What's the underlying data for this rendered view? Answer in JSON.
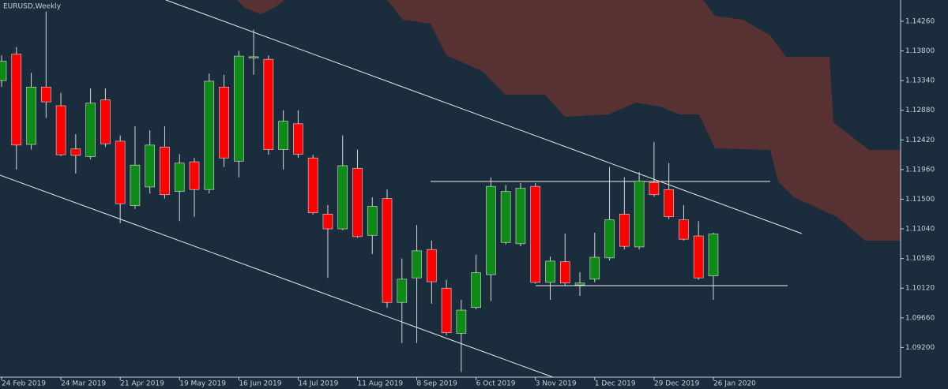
{
  "chart_data": {
    "type": "candlestick",
    "title": "EURUSD,Weekly",
    "categories": [
      "24 Feb 2019",
      null,
      null,
      null,
      "24 Mar 2019",
      null,
      null,
      null,
      "21 Apr 2019",
      null,
      null,
      null,
      "19 May 2019",
      null,
      null,
      null,
      "16 Jun 2019",
      null,
      null,
      null,
      "14 Jul 2019",
      null,
      null,
      null,
      "11 Aug 2019",
      null,
      null,
      null,
      "8 Sep 2019",
      null,
      null,
      null,
      "6 Oct 2019",
      null,
      null,
      null,
      "3 Nov 2019",
      null,
      null,
      null,
      "1 Dec 2019",
      null,
      null,
      null,
      "29 Dec 2019",
      null,
      null,
      null,
      "26 Jan 2020"
    ],
    "open": [
      1.1334,
      1.1375,
      1.1235,
      1.1324,
      1.1295,
      1.1228,
      1.1216,
      1.1304,
      1.124,
      1.114,
      1.1169,
      1.1231,
      1.1162,
      1.1208,
      1.1165,
      1.1324,
      1.1209,
      1.1369,
      1.1367,
      1.1227,
      1.1267,
      1.1214,
      1.1127,
      1.1104,
      1.1198,
      1.1094,
      1.1151,
      1.099,
      1.1028,
      1.1072,
      1.1012,
      1.0942,
      1.0982,
      1.1033,
      1.1083,
      1.1081,
      1.117,
      1.1021,
      1.1053,
      1.1017,
      1.1026,
      1.1059,
      1.1127,
      1.1076,
      1.1176,
      1.1165,
      1.1118,
      1.1093,
      1.1031
    ],
    "high": [
      1.1373,
      1.1386,
      1.1346,
      1.1441,
      1.1315,
      1.1251,
      1.1322,
      1.1322,
      1.1249,
      1.1263,
      1.1257,
      1.1263,
      1.122,
      1.1214,
      1.1345,
      1.1343,
      1.138,
      1.1413,
      1.1373,
      1.1288,
      1.1288,
      1.1219,
      1.1141,
      1.1249,
      1.1227,
      1.1153,
      1.1165,
      1.1058,
      1.111,
      1.1086,
      1.1025,
      1.0994,
      1.1064,
      1.1184,
      1.1172,
      1.1175,
      1.1175,
      1.1061,
      1.1097,
      1.1037,
      1.1098,
      1.12,
      1.1184,
      1.1192,
      1.1239,
      1.1206,
      1.1141,
      1.1116,
      1.1098
    ],
    "low": [
      1.1324,
      1.1196,
      1.1227,
      1.1276,
      1.1217,
      1.119,
      1.1212,
      1.1231,
      1.1113,
      1.1135,
      1.1159,
      1.1151,
      1.1116,
      1.1123,
      1.1159,
      1.12,
      1.1184,
      1.1343,
      1.1219,
      1.1196,
      1.1214,
      1.1126,
      1.1028,
      1.1102,
      1.109,
      1.1065,
      1.0982,
      1.0927,
      1.0927,
      1.0988,
      1.0939,
      1.0882,
      1.0979,
      1.0992,
      1.108,
      1.1077,
      1.1019,
      1.0994,
      1.1016,
      1.1,
      1.1021,
      1.1055,
      1.1072,
      1.1072,
      1.1154,
      1.1119,
      1.1086,
      1.1025,
      1.0994
    ],
    "close": [
      1.1364,
      1.1234,
      1.1324,
      1.1301,
      1.1219,
      1.1218,
      1.1299,
      1.1236,
      1.1143,
      1.1203,
      1.1234,
      1.1157,
      1.1206,
      1.1165,
      1.1333,
      1.1214,
      1.1372,
      1.1371,
      1.1227,
      1.1271,
      1.122,
      1.1129,
      1.1104,
      1.1202,
      1.1092,
      1.1139,
      1.099,
      1.1026,
      1.107,
      1.1022,
      1.0943,
      1.0978,
      1.1036,
      1.117,
      1.1162,
      1.1167,
      1.1021,
      1.1054,
      1.102,
      1.102,
      1.106,
      1.1118,
      1.1077,
      1.1178,
      1.1157,
      1.1123,
      1.1088,
      1.1028,
      1.1096
    ],
    "up_color": "#0e8a16",
    "down_color": "#ff0000",
    "ylim": [
      1.0874,
      1.1459
    ],
    "yticks": [
      {
        "value": 1.1426,
        "label": "1.14260"
      },
      {
        "value": 1.138,
        "label": "1.13800"
      },
      {
        "value": 1.1334,
        "label": "1.13340"
      },
      {
        "value": 1.1288,
        "label": "1.12880"
      },
      {
        "value": 1.1242,
        "label": "1.12420"
      },
      {
        "value": 1.1196,
        "label": "1.11960"
      },
      {
        "value": 1.115,
        "label": "1.11500"
      },
      {
        "value": 1.1104,
        "label": "1.11040"
      },
      {
        "value": 1.1058,
        "label": "1.10580"
      },
      {
        "value": 1.1012,
        "label": "1.10120"
      },
      {
        "value": 1.0966,
        "label": "1.09660"
      },
      {
        "value": 1.092,
        "label": "1.09200"
      }
    ]
  }
}
